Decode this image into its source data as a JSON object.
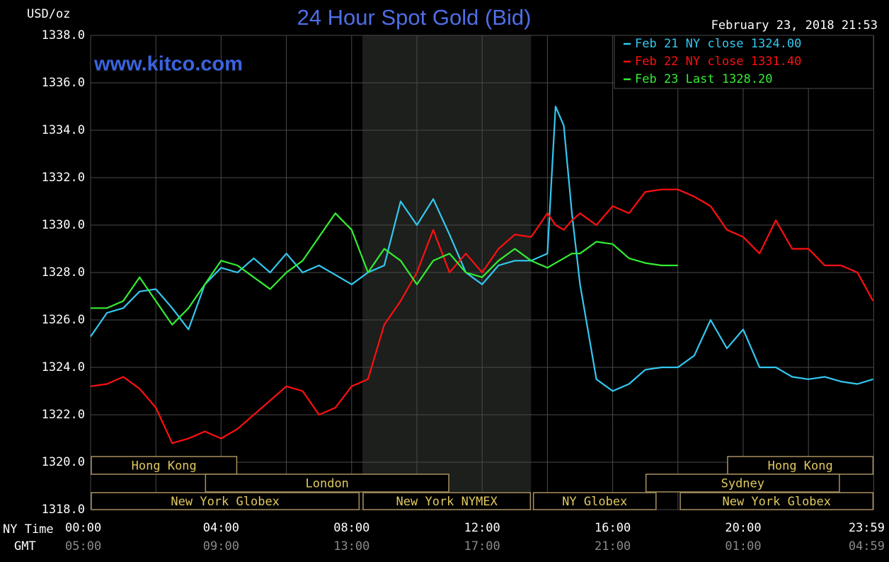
{
  "chart_data": {
    "type": "line",
    "title": "24 Hour Spot Gold (Bid)",
    "subtitle": "February 23, 2018 21:53",
    "watermark": "www.kitco.com",
    "y_label": "USD/oz",
    "x_label": "NY Time",
    "x2_label": "GMT",
    "xlim": [
      0,
      24
    ],
    "ylim": [
      1318,
      1338
    ],
    "xticks": [
      {
        "value": 0,
        "label": "00:00"
      },
      {
        "value": 4,
        "label": "04:00"
      },
      {
        "value": 8,
        "label": "08:00"
      },
      {
        "value": 12,
        "label": "12:00"
      },
      {
        "value": 16,
        "label": "16:00"
      },
      {
        "value": 20,
        "label": "20:00"
      },
      {
        "value": 23.98,
        "label": "23:59"
      }
    ],
    "xticks_gmt": [
      "05:00",
      "09:00",
      "13:00",
      "17:00",
      "21:00",
      "01:00",
      "04:59"
    ],
    "x_grid": [
      0,
      2,
      4,
      6,
      8,
      10,
      12,
      14,
      16,
      18,
      20,
      22,
      24
    ],
    "yticks": [
      {
        "value": 1318,
        "label": "1318.0"
      },
      {
        "value": 1320,
        "label": "1320.0"
      },
      {
        "value": 1322,
        "label": "1322.0"
      },
      {
        "value": 1324,
        "label": "1324.0"
      },
      {
        "value": 1326,
        "label": "1326.0"
      },
      {
        "value": 1328,
        "label": "1328.0"
      },
      {
        "value": 1330,
        "label": "1330.0"
      },
      {
        "value": 1332,
        "label": "1332.0"
      },
      {
        "value": 1334,
        "label": "1334.0"
      },
      {
        "value": 1336,
        "label": "1336.0"
      },
      {
        "value": 1338,
        "label": "1338.0"
      }
    ],
    "grid": true,
    "legend": "top-right",
    "shaded_x": [
      8.33,
      13.5
    ],
    "sessions": [
      [
        {
          "name": "Hong Kong",
          "start": 0,
          "end": 4.5
        },
        {
          "name": "Hong Kong",
          "start": 19.5,
          "end": 24
        }
      ],
      [
        {
          "name": "London",
          "start": 3.5,
          "end": 11
        },
        {
          "name": "Sydney",
          "start": 17,
          "end": 22.97
        }
      ],
      [
        {
          "name": "New York Globex",
          "start": 0,
          "end": 8.25
        },
        {
          "name": "New York NYMEX",
          "start": 8.33,
          "end": 13.5
        },
        {
          "name": "NY Globex",
          "start": 13.55,
          "end": 17.35
        },
        {
          "name": "New York Globex",
          "start": 18.05,
          "end": 24
        }
      ]
    ],
    "x": [
      0,
      0.5,
      1,
      1.5,
      2,
      2.5,
      3,
      3.5,
      4,
      4.5,
      5,
      5.5,
      6,
      6.5,
      7,
      7.5,
      8,
      8.5,
      9,
      9.5,
      10,
      10.5,
      11,
      11.5,
      12,
      12.5,
      13,
      13.5,
      14,
      14.25,
      14.5,
      14.75,
      15,
      15.5,
      16,
      16.5,
      17,
      17.5,
      18,
      18.5,
      19,
      19.5,
      20,
      20.5,
      21,
      21.5,
      22,
      22.5,
      23,
      23.5,
      23.98
    ],
    "series": [
      {
        "name": "Feb 21 NY close 1324.00",
        "color": "#33c8f0",
        "values": [
          1325.3,
          1326.3,
          1326.5,
          1327.2,
          1327.3,
          1326.5,
          1325.6,
          1327.5,
          1328.2,
          1328.0,
          1328.6,
          1328.0,
          1328.8,
          1328.0,
          1328.3,
          1327.9,
          1327.5,
          1328.0,
          1328.3,
          1331.0,
          1330.0,
          1331.1,
          1329.6,
          1328.0,
          1327.5,
          1328.3,
          1328.5,
          1328.5,
          1328.8,
          1335.0,
          1334.2,
          1330.5,
          1327.5,
          1323.5,
          1323.0,
          1323.3,
          1323.9,
          1324.0,
          1324.0,
          1324.5,
          1326.0,
          1324.8,
          1325.6,
          1324.0,
          1324.0,
          1323.6,
          1323.5,
          1323.6,
          1323.4,
          1323.3,
          1323.5
        ]
      },
      {
        "name": "Feb 22 NY close 1331.40",
        "color": "#ff1010",
        "values": [
          1323.2,
          1323.3,
          1323.6,
          1323.1,
          1322.3,
          1320.8,
          1321.0,
          1321.3,
          1321.0,
          1321.4,
          1322.0,
          1322.6,
          1323.2,
          1323.0,
          1322.0,
          1322.3,
          1323.2,
          1323.5,
          1325.8,
          1326.8,
          1328.0,
          1329.8,
          1328.0,
          1328.8,
          1328.0,
          1329.0,
          1329.6,
          1329.5,
          1330.5,
          1330.0,
          1329.8,
          1330.2,
          1330.5,
          1330.0,
          1330.8,
          1330.5,
          1331.4,
          1331.5,
          1331.5,
          1331.2,
          1330.8,
          1329.8,
          1329.5,
          1328.8,
          1330.2,
          1329.0,
          1329.0,
          1328.3,
          1328.3,
          1328.0,
          1326.8
        ]
      },
      {
        "name": "Feb 23 Last 1328.20",
        "color": "#33ee33",
        "values": [
          1326.5,
          1326.5,
          1326.8,
          1327.8,
          1326.8,
          1325.8,
          1326.5,
          1327.5,
          1328.5,
          1328.3,
          1327.8,
          1327.3,
          1328.0,
          1328.5,
          1329.5,
          1330.5,
          1329.8,
          1328.0,
          1329.0,
          1328.5,
          1327.5,
          1328.5,
          1328.8,
          1328.0,
          1327.8,
          1328.5,
          1329.0,
          1328.5,
          1328.2,
          1328.4,
          1328.6,
          1328.8,
          1328.8,
          1329.3,
          1329.2,
          1328.6,
          1328.4,
          1328.3,
          1328.3,
          null,
          null,
          null,
          null,
          null,
          null,
          null,
          null,
          null,
          null,
          null,
          null
        ]
      }
    ]
  }
}
